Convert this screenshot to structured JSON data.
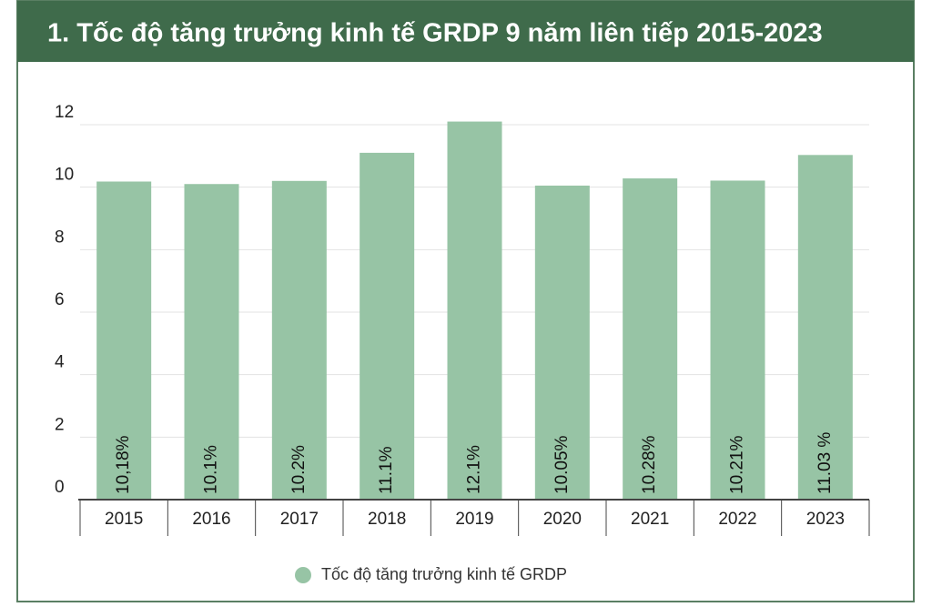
{
  "chart_data": {
    "type": "bar",
    "title": "1. Tốc độ tăng trưởng kinh tế GRDP 9 năm liên tiếp 2015-2023",
    "categories": [
      "2015",
      "2016",
      "2017",
      "2018",
      "2019",
      "2020",
      "2021",
      "2022",
      "2023"
    ],
    "series": [
      {
        "name": "Tốc độ tăng trưởng kinh tế GRDP",
        "color": "#97c4a5",
        "values": [
          10.18,
          10.1,
          10.2,
          11.1,
          12.1,
          10.05,
          10.28,
          10.21,
          11.03
        ],
        "value_labels": [
          "10,18%",
          "10.1%",
          "10.2%",
          "11.1%",
          "12.1%",
          "10.05%",
          "10.28%",
          "10.21%",
          "11.03 %"
        ]
      }
    ],
    "ylim": [
      0,
      12
    ],
    "yticks": [
      0,
      2,
      4,
      6,
      8,
      10,
      12
    ],
    "grid": true
  }
}
